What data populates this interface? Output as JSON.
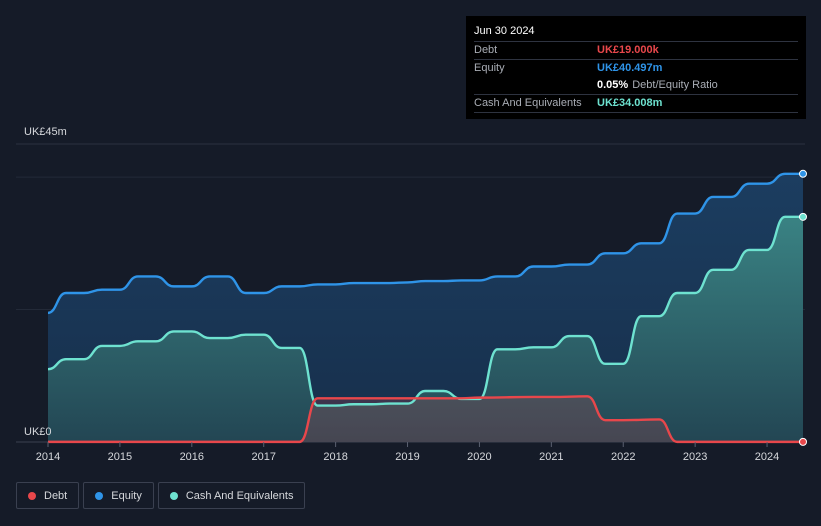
{
  "chart_data": {
    "type": "area",
    "currency_unit": "UK£m",
    "y_axis": {
      "ticks": [
        {
          "value": 0,
          "label": "UK£0"
        },
        {
          "value": 45,
          "label": "UK£45m"
        }
      ],
      "ylim": [
        0,
        45
      ]
    },
    "x_axis": {
      "xlim": [
        2014.0,
        2024.5
      ],
      "ticks": [
        {
          "value": 2014,
          "label": "2014"
        },
        {
          "value": 2015,
          "label": "2015"
        },
        {
          "value": 2016,
          "label": "2016"
        },
        {
          "value": 2017,
          "label": "2017"
        },
        {
          "value": 2018,
          "label": "2018"
        },
        {
          "value": 2019,
          "label": "2019"
        },
        {
          "value": 2020,
          "label": "2020"
        },
        {
          "value": 2021,
          "label": "2021"
        },
        {
          "value": 2022,
          "label": "2022"
        },
        {
          "value": 2023,
          "label": "2023"
        },
        {
          "value": 2024,
          "label": "2024"
        }
      ]
    },
    "series": [
      {
        "name": "Equity",
        "color": "#2f94e8",
        "points": [
          [
            2014.0,
            19.5
          ],
          [
            2014.25,
            22.5
          ],
          [
            2014.5,
            22.5
          ],
          [
            2014.75,
            23.0
          ],
          [
            2015.0,
            23.0
          ],
          [
            2015.25,
            25.0
          ],
          [
            2015.5,
            25.0
          ],
          [
            2015.75,
            23.5
          ],
          [
            2016.0,
            23.5
          ],
          [
            2016.25,
            25.0
          ],
          [
            2016.5,
            25.0
          ],
          [
            2016.75,
            22.5
          ],
          [
            2017.0,
            22.5
          ],
          [
            2017.25,
            23.5
          ],
          [
            2017.5,
            23.5
          ],
          [
            2017.75,
            23.8
          ],
          [
            2018.0,
            23.8
          ],
          [
            2018.25,
            24.0
          ],
          [
            2018.5,
            24.0
          ],
          [
            2018.75,
            24.0
          ],
          [
            2019.0,
            24.1
          ],
          [
            2019.25,
            24.3
          ],
          [
            2019.5,
            24.3
          ],
          [
            2019.75,
            24.4
          ],
          [
            2020.0,
            24.4
          ],
          [
            2020.25,
            25.0
          ],
          [
            2020.5,
            25.0
          ],
          [
            2020.75,
            26.5
          ],
          [
            2021.0,
            26.5
          ],
          [
            2021.25,
            26.8
          ],
          [
            2021.5,
            26.8
          ],
          [
            2021.75,
            28.5
          ],
          [
            2022.0,
            28.5
          ],
          [
            2022.25,
            30.0
          ],
          [
            2022.5,
            30.0
          ],
          [
            2022.75,
            34.5
          ],
          [
            2023.0,
            34.5
          ],
          [
            2023.25,
            37.0
          ],
          [
            2023.5,
            37.0
          ],
          [
            2023.75,
            39.0
          ],
          [
            2024.0,
            39.0
          ],
          [
            2024.25,
            40.5
          ],
          [
            2024.5,
            40.5
          ]
        ]
      },
      {
        "name": "Cash And Equivalents",
        "color": "#6ee2d0",
        "points": [
          [
            2014.0,
            11.0
          ],
          [
            2014.25,
            12.5
          ],
          [
            2014.5,
            12.5
          ],
          [
            2014.75,
            14.5
          ],
          [
            2015.0,
            14.5
          ],
          [
            2015.25,
            15.2
          ],
          [
            2015.5,
            15.2
          ],
          [
            2015.75,
            16.7
          ],
          [
            2016.0,
            16.7
          ],
          [
            2016.25,
            15.7
          ],
          [
            2016.5,
            15.7
          ],
          [
            2016.75,
            16.2
          ],
          [
            2017.0,
            16.2
          ],
          [
            2017.25,
            14.2
          ],
          [
            2017.5,
            14.2
          ],
          [
            2017.75,
            5.5
          ],
          [
            2018.0,
            5.5
          ],
          [
            2018.25,
            5.7
          ],
          [
            2018.5,
            5.7
          ],
          [
            2018.75,
            5.8
          ],
          [
            2019.0,
            5.8
          ],
          [
            2019.25,
            7.7
          ],
          [
            2019.5,
            7.7
          ],
          [
            2019.75,
            6.5
          ],
          [
            2020.0,
            6.5
          ],
          [
            2020.25,
            14.0
          ],
          [
            2020.5,
            14.0
          ],
          [
            2020.75,
            14.3
          ],
          [
            2021.0,
            14.3
          ],
          [
            2021.25,
            16.0
          ],
          [
            2021.5,
            16.0
          ],
          [
            2021.75,
            11.8
          ],
          [
            2022.0,
            11.8
          ],
          [
            2022.25,
            19.0
          ],
          [
            2022.5,
            19.0
          ],
          [
            2022.75,
            22.5
          ],
          [
            2023.0,
            22.5
          ],
          [
            2023.25,
            26.0
          ],
          [
            2023.5,
            26.0
          ],
          [
            2023.75,
            29.0
          ],
          [
            2024.0,
            29.0
          ],
          [
            2024.25,
            34.0
          ],
          [
            2024.5,
            34.0
          ]
        ]
      },
      {
        "name": "Debt",
        "color": "#e8474b",
        "points": [
          [
            2014.0,
            0.02
          ],
          [
            2017.5,
            0.02
          ],
          [
            2017.75,
            6.6
          ],
          [
            2018.0,
            6.6
          ],
          [
            2018.25,
            6.6
          ],
          [
            2019.0,
            6.6
          ],
          [
            2019.25,
            6.6
          ],
          [
            2019.75,
            6.6
          ],
          [
            2020.0,
            6.7
          ],
          [
            2020.75,
            6.8
          ],
          [
            2021.0,
            6.8
          ],
          [
            2021.5,
            6.9
          ],
          [
            2021.75,
            3.3
          ],
          [
            2022.0,
            3.3
          ],
          [
            2022.5,
            3.4
          ],
          [
            2022.75,
            0.02
          ],
          [
            2024.5,
            0.02
          ]
        ]
      }
    ]
  },
  "tooltip": {
    "date": "Jun 30 2024",
    "rows": {
      "debt": {
        "label": "Debt",
        "value": "UK£19.000k"
      },
      "equity": {
        "label": "Equity",
        "value": "UK£40.497m"
      },
      "ratio": {
        "value": "0.05%",
        "label": "Debt/Equity Ratio"
      },
      "cash": {
        "label": "Cash And Equivalents",
        "value": "UK£34.008m"
      }
    }
  },
  "legend": {
    "debt": {
      "label": "Debt",
      "color": "#e8474b"
    },
    "equity": {
      "label": "Equity",
      "color": "#2f94e8"
    },
    "cash": {
      "label": "Cash And Equivalents",
      "color": "#6ee2d0"
    }
  }
}
